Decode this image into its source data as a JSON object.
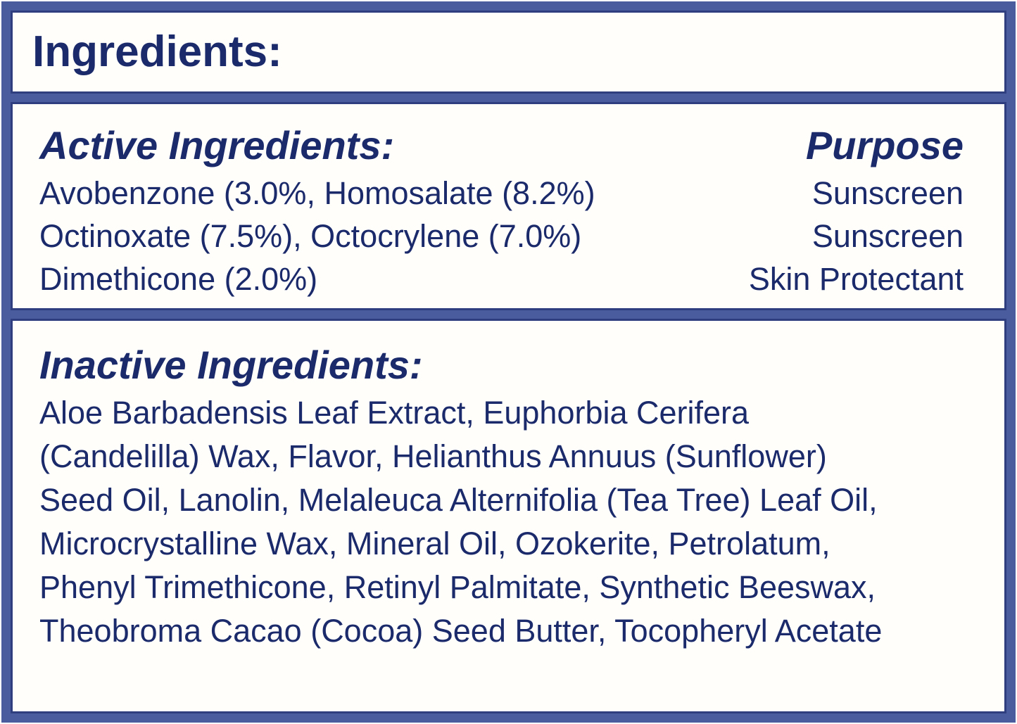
{
  "label": {
    "title": "Ingredients:",
    "active_section": {
      "heading": "Active Ingredients:",
      "purpose_heading": "Purpose",
      "rows": [
        {
          "ingredient": "Avobenzone (3.0%, Homosalate (8.2%)",
          "purpose": "Sunscreen"
        },
        {
          "ingredient": "Octinoxate (7.5%), Octocrylene (7.0%)",
          "purpose": "Sunscreen"
        },
        {
          "ingredient": "Dimethicone (2.0%)",
          "purpose": "Skin Protectant"
        }
      ]
    },
    "inactive_section": {
      "heading": "Inactive Ingredients:",
      "lines": [
        "Aloe Barbadensis Leaf Extract, Euphorbia Cerifera",
        "(Candelilla) Wax, Flavor, Helianthus Annuus (Sunflower)",
        "Seed Oil, Lanolin, Melaleuca Alternifolia (Tea Tree) Leaf Oil,",
        "Microcrystalline Wax, Mineral Oil, Ozokerite, Petrolatum,",
        "Phenyl Trimethicone, Retinyl Palmitate, Synthetic Beeswax,",
        "Theobroma Cacao (Cocoa) Seed Butter, Tocopheryl Acetate"
      ]
    },
    "colors": {
      "text_navy": "#1b2a6a",
      "frame_blue": "#4a5c9e",
      "panel_border": "#2f3e7e",
      "panel_background": "#fffefb"
    }
  }
}
